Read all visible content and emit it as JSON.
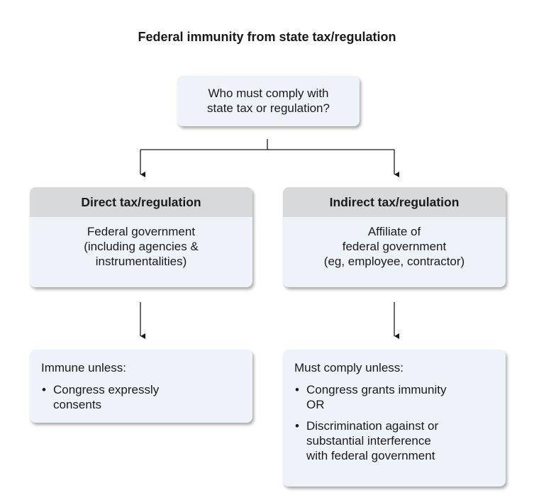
{
  "title": "Federal immunity from state tax/regulation",
  "question": {
    "lines": [
      "Who must comply with",
      "state tax or regulation?"
    ]
  },
  "branches": [
    {
      "header": "Direct tax/regulation",
      "lines": [
        "Federal government",
        "(including agencies &",
        "instrumentalities)"
      ]
    },
    {
      "header": "Indirect tax/regulation",
      "lines": [
        "Affiliate of",
        "federal government",
        "(eg, employee, contractor)"
      ]
    }
  ],
  "outcomes": [
    {
      "lead": "Immune unless:",
      "bullets": [
        {
          "lines": [
            "Congress expressly",
            "consents"
          ]
        }
      ]
    },
    {
      "lead": "Must comply unless:",
      "bullets": [
        {
          "lines": [
            "Congress grants immunity",
            "OR"
          ]
        },
        {
          "lines": [
            "Discrimination against or",
            "substantial interference",
            "with federal government"
          ]
        }
      ]
    }
  ],
  "bullet_char": "•",
  "colors": {
    "box_fill": "#eef3f9",
    "header_fill": "#d7d9db",
    "line": "#1a1a1a"
  }
}
